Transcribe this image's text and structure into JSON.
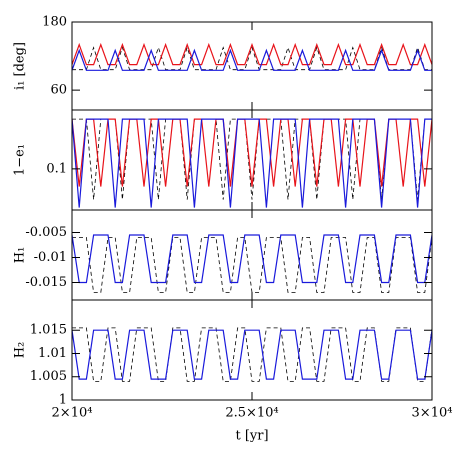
{
  "chart_data": [
    {
      "type": "line",
      "ylabel": "i₁ [deg]",
      "xlim": [
        20000,
        30000
      ],
      "ylim": [
        25,
        180
      ],
      "yticks": [
        60,
        180
      ],
      "x": [
        20000,
        20200,
        20400,
        20600,
        20800,
        21000,
        21200,
        21400,
        21600,
        21800,
        22000,
        22200,
        22400,
        22600,
        22800,
        23000,
        23200,
        23400,
        23600,
        23800,
        24000,
        24200,
        24400,
        24600,
        24800,
        25000,
        25200,
        25400,
        25600,
        25800,
        26000,
        26200,
        26400,
        26600,
        26800,
        27000,
        27200,
        27400,
        27600,
        27800,
        28000,
        28200,
        28400,
        28600,
        28800,
        29000,
        29200,
        29400,
        29600,
        29800,
        30000
      ],
      "series": [
        {
          "color": "#000000",
          "dash": true,
          "values": [
            96,
            96,
            96,
            135,
            96,
            96,
            96,
            135,
            96,
            96,
            96,
            96,
            135,
            96,
            96,
            96,
            135,
            96,
            96,
            96,
            96,
            135,
            96,
            96,
            96,
            135,
            96,
            96,
            96,
            96,
            135,
            96,
            96,
            96,
            135,
            96,
            96,
            96,
            96,
            135,
            96,
            96,
            96,
            135,
            96,
            96,
            96,
            96,
            135,
            96,
            96
          ]
        },
        {
          "color": "#e8141b",
          "dash": false,
          "values": [
            105,
            140,
            105,
            105,
            140,
            105,
            105,
            140,
            105,
            105,
            140,
            105,
            105,
            140,
            105,
            105,
            140,
            105,
            105,
            140,
            105,
            105,
            140,
            105,
            105,
            140,
            105,
            105,
            140,
            105,
            105,
            140,
            105,
            105,
            140,
            105,
            105,
            140,
            105,
            105,
            140,
            105,
            105,
            140,
            105,
            105,
            140,
            105,
            105,
            140,
            105
          ]
        },
        {
          "color": "#1a1adb",
          "dash": false,
          "values": [
            95,
            130,
            95,
            95,
            95,
            95,
            130,
            95,
            95,
            95,
            95,
            130,
            95,
            95,
            95,
            95,
            95,
            130,
            95,
            95,
            95,
            95,
            130,
            95,
            95,
            95,
            95,
            130,
            95,
            95,
            95,
            95,
            130,
            95,
            95,
            95,
            95,
            95,
            130,
            95,
            95,
            95,
            95,
            130,
            95,
            95,
            95,
            95,
            130,
            95,
            95
          ]
        }
      ]
    },
    {
      "type": "line",
      "ylabel": "1−e₁",
      "log": true,
      "xlim": [
        20000,
        30000
      ],
      "ylim": [
        0.02,
        1
      ],
      "yticks": [
        0.1
      ],
      "x": [
        20000,
        20200,
        20400,
        20600,
        20800,
        21000,
        21200,
        21400,
        21600,
        21800,
        22000,
        22200,
        22400,
        22600,
        22800,
        23000,
        23200,
        23400,
        23600,
        23800,
        24000,
        24200,
        24400,
        24600,
        24800,
        25000,
        25200,
        25400,
        25600,
        25800,
        26000,
        26200,
        26400,
        26600,
        26800,
        27000,
        27200,
        27400,
        27600,
        27800,
        28000,
        28200,
        28400,
        28600,
        28800,
        29000,
        29200,
        29400,
        29600,
        29800,
        30000
      ],
      "series": [
        {
          "color": "#000000",
          "dash": true,
          "values": [
            0.7,
            0.7,
            0.7,
            0.03,
            0.7,
            0.7,
            0.7,
            0.03,
            0.7,
            0.7,
            0.7,
            0.7,
            0.03,
            0.7,
            0.7,
            0.7,
            0.03,
            0.7,
            0.7,
            0.7,
            0.7,
            0.03,
            0.7,
            0.7,
            0.7,
            0.03,
            0.7,
            0.7,
            0.7,
            0.7,
            0.03,
            0.7,
            0.7,
            0.7,
            0.03,
            0.7,
            0.7,
            0.7,
            0.7,
            0.03,
            0.7,
            0.7,
            0.7,
            0.03,
            0.7,
            0.7,
            0.7,
            0.7,
            0.03,
            0.7,
            0.7
          ]
        },
        {
          "color": "#e8141b",
          "dash": false,
          "values": [
            0.7,
            0.05,
            0.7,
            0.7,
            0.05,
            0.7,
            0.7,
            0.05,
            0.7,
            0.7,
            0.05,
            0.7,
            0.7,
            0.05,
            0.7,
            0.7,
            0.05,
            0.7,
            0.7,
            0.05,
            0.7,
            0.7,
            0.05,
            0.7,
            0.7,
            0.05,
            0.7,
            0.7,
            0.05,
            0.7,
            0.7,
            0.05,
            0.7,
            0.7,
            0.05,
            0.7,
            0.7,
            0.05,
            0.7,
            0.7,
            0.05,
            0.7,
            0.7,
            0.05,
            0.7,
            0.7,
            0.05,
            0.7,
            0.7,
            0.05,
            0.7
          ]
        },
        {
          "color": "#1a1adb",
          "dash": false,
          "values": [
            0.7,
            0.022,
            0.7,
            0.7,
            0.7,
            0.7,
            0.022,
            0.7,
            0.7,
            0.7,
            0.7,
            0.022,
            0.7,
            0.7,
            0.7,
            0.7,
            0.7,
            0.022,
            0.7,
            0.7,
            0.7,
            0.7,
            0.022,
            0.7,
            0.7,
            0.7,
            0.7,
            0.022,
            0.7,
            0.7,
            0.7,
            0.7,
            0.022,
            0.7,
            0.7,
            0.7,
            0.7,
            0.7,
            0.022,
            0.7,
            0.7,
            0.7,
            0.7,
            0.022,
            0.7,
            0.7,
            0.7,
            0.7,
            0.022,
            0.7,
            0.7
          ]
        }
      ]
    },
    {
      "type": "line",
      "ylabel": "H₁",
      "xlim": [
        20000,
        30000
      ],
      "ylim": [
        -0.0185,
        -0.0005
      ],
      "yticks": [
        -0.015,
        -0.01,
        -0.005
      ],
      "x": [
        20000,
        20200,
        20400,
        20600,
        20800,
        21000,
        21200,
        21400,
        21600,
        21800,
        22000,
        22200,
        22400,
        22600,
        22800,
        23000,
        23200,
        23400,
        23600,
        23800,
        24000,
        24200,
        24400,
        24600,
        24800,
        25000,
        25200,
        25400,
        25600,
        25800,
        26000,
        26200,
        26400,
        26600,
        26800,
        27000,
        27200,
        27400,
        27600,
        27800,
        28000,
        28200,
        28400,
        28600,
        28800,
        29000,
        29200,
        29400,
        29600,
        29800,
        30000
      ],
      "series": [
        {
          "color": "#000000",
          "dash": true,
          "values": [
            -0.006,
            -0.006,
            -0.006,
            -0.017,
            -0.017,
            -0.006,
            -0.006,
            -0.017,
            -0.017,
            -0.006,
            -0.006,
            -0.006,
            -0.017,
            -0.017,
            -0.006,
            -0.006,
            -0.017,
            -0.017,
            -0.006,
            -0.006,
            -0.006,
            -0.017,
            -0.017,
            -0.006,
            -0.006,
            -0.017,
            -0.017,
            -0.006,
            -0.006,
            -0.006,
            -0.017,
            -0.017,
            -0.006,
            -0.006,
            -0.017,
            -0.017,
            -0.006,
            -0.006,
            -0.006,
            -0.017,
            -0.017,
            -0.006,
            -0.006,
            -0.017,
            -0.017,
            -0.006,
            -0.006,
            -0.006,
            -0.017,
            -0.017,
            -0.006
          ]
        },
        {
          "color": "#1a1adb",
          "dash": false,
          "values": [
            -0.0055,
            -0.015,
            -0.015,
            -0.0055,
            -0.0055,
            -0.0055,
            -0.015,
            -0.015,
            -0.0055,
            -0.0055,
            -0.0055,
            -0.015,
            -0.015,
            -0.015,
            -0.0055,
            -0.0055,
            -0.0055,
            -0.015,
            -0.015,
            -0.0055,
            -0.0055,
            -0.0055,
            -0.015,
            -0.015,
            -0.0055,
            -0.0055,
            -0.0055,
            -0.015,
            -0.015,
            -0.0055,
            -0.0055,
            -0.0055,
            -0.015,
            -0.015,
            -0.015,
            -0.0055,
            -0.0055,
            -0.0055,
            -0.015,
            -0.015,
            -0.0055,
            -0.0055,
            -0.0055,
            -0.015,
            -0.015,
            -0.0055,
            -0.0055,
            -0.0055,
            -0.015,
            -0.015,
            -0.0055
          ]
        }
      ]
    },
    {
      "type": "line",
      "ylabel": "H₂",
      "xlabel": "t [yr]",
      "xlim": [
        20000,
        30000
      ],
      "ylim": [
        1,
        1.0215
      ],
      "yticks": [
        1,
        1.005,
        1.01,
        1.015
      ],
      "xticks": [
        {
          "value": 20000,
          "label": "2×10⁴"
        },
        {
          "value": 25000,
          "label": "2.5×10⁴"
        },
        {
          "value": 30000,
          "label": "3×10⁴"
        }
      ],
      "x": [
        20000,
        20200,
        20400,
        20600,
        20800,
        21000,
        21200,
        21400,
        21600,
        21800,
        22000,
        22200,
        22400,
        22600,
        22800,
        23000,
        23200,
        23400,
        23600,
        23800,
        24000,
        24200,
        24400,
        24600,
        24800,
        25000,
        25200,
        25400,
        25600,
        25800,
        26000,
        26200,
        26400,
        26600,
        26800,
        27000,
        27200,
        27400,
        27600,
        27800,
        28000,
        28200,
        28400,
        28600,
        28800,
        29000,
        29200,
        29400,
        29600,
        29800,
        30000
      ],
      "series": [
        {
          "color": "#000000",
          "dash": true,
          "values": [
            1.0155,
            1.0155,
            1.0155,
            1.004,
            1.004,
            1.0155,
            1.0155,
            1.004,
            1.004,
            1.0155,
            1.0155,
            1.0155,
            1.004,
            1.004,
            1.0155,
            1.0155,
            1.004,
            1.004,
            1.0155,
            1.0155,
            1.0155,
            1.004,
            1.004,
            1.0155,
            1.0155,
            1.004,
            1.004,
            1.0155,
            1.0155,
            1.0155,
            1.004,
            1.004,
            1.0155,
            1.0155,
            1.004,
            1.004,
            1.0155,
            1.0155,
            1.0155,
            1.004,
            1.004,
            1.0155,
            1.0155,
            1.004,
            1.004,
            1.0155,
            1.0155,
            1.0155,
            1.004,
            1.004,
            1.0155
          ]
        },
        {
          "color": "#1a1adb",
          "dash": false,
          "values": [
            1.015,
            1.0045,
            1.0045,
            1.015,
            1.015,
            1.015,
            1.0045,
            1.0045,
            1.015,
            1.015,
            1.015,
            1.0045,
            1.0045,
            1.0045,
            1.015,
            1.015,
            1.015,
            1.0045,
            1.0045,
            1.015,
            1.015,
            1.015,
            1.0045,
            1.0045,
            1.015,
            1.015,
            1.015,
            1.0045,
            1.0045,
            1.015,
            1.015,
            1.015,
            1.0045,
            1.0045,
            1.0045,
            1.015,
            1.015,
            1.015,
            1.0045,
            1.0045,
            1.015,
            1.015,
            1.015,
            1.0045,
            1.0045,
            1.015,
            1.015,
            1.015,
            1.0045,
            1.0045,
            1.015
          ]
        }
      ]
    }
  ]
}
